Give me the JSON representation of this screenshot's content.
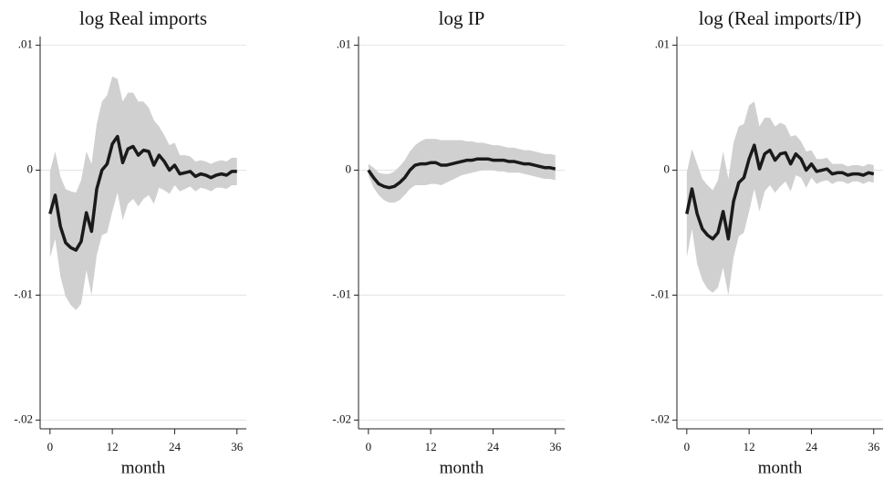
{
  "chart_data": [
    {
      "type": "line",
      "title": "log Real imports",
      "x_label": "month",
      "x": [
        0,
        1,
        2,
        3,
        4,
        5,
        6,
        7,
        8,
        9,
        10,
        11,
        12,
        13,
        14,
        15,
        16,
        17,
        18,
        19,
        20,
        21,
        22,
        23,
        24,
        25,
        26,
        27,
        28,
        29,
        30,
        31,
        32,
        33,
        34,
        35,
        36
      ],
      "xlim": [
        -1.9,
        37.8
      ],
      "xticks": [
        0,
        12,
        24,
        36
      ],
      "ylim": [
        -0.0207,
        0.0107
      ],
      "yticks": [
        {
          "value": 0.01,
          "label": ".01"
        },
        0,
        {
          "value": -0.01,
          "label": "-.01"
        },
        {
          "value": -0.02,
          "label": "-.02"
        }
      ],
      "grid": true,
      "line": {
        "color": "#1a1a1a",
        "values": [
          -0.0035,
          -0.002,
          -0.0045,
          -0.0058,
          -0.0062,
          -0.0064,
          -0.0057,
          -0.0034,
          -0.0049,
          -0.0015,
          0,
          0.0005,
          0.0021,
          0.0027,
          0.0006,
          0.0017,
          0.0019,
          0.0012,
          0.0016,
          0.0015,
          0.0004,
          0.0012,
          0.0007,
          0,
          0.0004,
          -0.0003,
          -0.0002,
          -0.0001,
          -0.0005,
          -0.0003,
          -0.0004,
          -0.0006,
          -0.0004,
          -0.0003,
          -0.0004,
          -0.0001,
          -0.0001
        ]
      },
      "band": {
        "color": "#d0d0d0",
        "upper": [
          -0.0001,
          0.0015,
          -0.0005,
          -0.0015,
          -0.0017,
          -0.0018,
          -0.0008,
          0.0015,
          0.0005,
          0.0037,
          0.0055,
          0.006,
          0.0075,
          0.0073,
          0.0055,
          0.0062,
          0.0062,
          0.0055,
          0.0055,
          0.005,
          0.004,
          0.0035,
          0.0028,
          0.002,
          0.0022,
          0.0012,
          0.0012,
          0.0011,
          0.0007,
          0.0008,
          0.0007,
          0.0005,
          0.0007,
          0.0008,
          0.0007,
          0.001,
          0.001
        ],
        "lower": [
          -0.007,
          -0.0055,
          -0.0085,
          -0.0101,
          -0.0108,
          -0.0112,
          -0.0107,
          -0.008,
          -0.01,
          -0.0068,
          -0.0052,
          -0.005,
          -0.0033,
          -0.0018,
          -0.004,
          -0.0027,
          -0.0023,
          -0.0029,
          -0.0023,
          -0.002,
          -0.0027,
          -0.0014,
          -0.0016,
          -0.0019,
          -0.0012,
          -0.0017,
          -0.0015,
          -0.0013,
          -0.0017,
          -0.0014,
          -0.0015,
          -0.0017,
          -0.0014,
          -0.0014,
          -0.0015,
          -0.0012,
          -0.0012
        ]
      }
    },
    {
      "type": "line",
      "title": "log IP",
      "x_label": "month",
      "x": [
        0,
        1,
        2,
        3,
        4,
        5,
        6,
        7,
        8,
        9,
        10,
        11,
        12,
        13,
        14,
        15,
        16,
        17,
        18,
        19,
        20,
        21,
        22,
        23,
        24,
        25,
        26,
        27,
        28,
        29,
        30,
        31,
        32,
        33,
        34,
        35,
        36
      ],
      "xlim": [
        -1.9,
        37.8
      ],
      "xticks": [
        0,
        12,
        24,
        36
      ],
      "ylim": [
        -0.0207,
        0.0107
      ],
      "yticks": [
        {
          "value": 0.01,
          "label": ".01"
        },
        0,
        {
          "value": -0.01,
          "label": "-.01"
        },
        {
          "value": -0.02,
          "label": "-.02"
        }
      ],
      "grid": true,
      "line": {
        "color": "#1a1a1a",
        "values": [
          0,
          -0.0006,
          -0.0011,
          -0.0013,
          -0.0014,
          -0.0013,
          -0.001,
          -0.0006,
          0,
          0.0004,
          0.0005,
          0.0005,
          0.0006,
          0.0006,
          0.0004,
          0.0004,
          0.0005,
          0.0006,
          0.0007,
          0.0008,
          0.0008,
          0.0009,
          0.0009,
          0.0009,
          0.0008,
          0.0008,
          0.0008,
          0.0007,
          0.0007,
          0.0006,
          0.0005,
          0.0005,
          0.0004,
          0.0003,
          0.0002,
          0.0002,
          0.0001
        ]
      },
      "band": {
        "color": "#d0d0d0",
        "upper": [
          0.0005,
          0.0002,
          -0.0002,
          -0.0003,
          -0.0003,
          -0.0001,
          0.0003,
          0.0008,
          0.0015,
          0.002,
          0.0023,
          0.0025,
          0.0025,
          0.0025,
          0.0024,
          0.0024,
          0.0024,
          0.0024,
          0.0024,
          0.0023,
          0.0023,
          0.0022,
          0.0022,
          0.0021,
          0.002,
          0.002,
          0.0019,
          0.0018,
          0.0018,
          0.0017,
          0.0016,
          0.0016,
          0.0015,
          0.0014,
          0.0013,
          0.0013,
          0.0012
        ],
        "lower": [
          -0.0004,
          -0.0014,
          -0.002,
          -0.0024,
          -0.0026,
          -0.0026,
          -0.0024,
          -0.002,
          -0.0015,
          -0.0012,
          -0.0012,
          -0.0012,
          -0.0011,
          -0.0011,
          -0.0012,
          -0.001,
          -0.0008,
          -0.0006,
          -0.0004,
          -0.0003,
          -0.0002,
          -0.0001,
          0,
          0,
          0,
          -0.0001,
          -0.0001,
          -0.0002,
          -0.0002,
          -0.0002,
          -0.0003,
          -0.0004,
          -0.0005,
          -0.0006,
          -0.0007,
          -0.0007,
          -0.0008
        ]
      }
    },
    {
      "type": "line",
      "title": "log (Real imports/IP)",
      "x_label": "month",
      "x": [
        0,
        1,
        2,
        3,
        4,
        5,
        6,
        7,
        8,
        9,
        10,
        11,
        12,
        13,
        14,
        15,
        16,
        17,
        18,
        19,
        20,
        21,
        22,
        23,
        24,
        25,
        26,
        27,
        28,
        29,
        30,
        31,
        32,
        33,
        34,
        35,
        36
      ],
      "xlim": [
        -1.9,
        37.8
      ],
      "xticks": [
        0,
        12,
        24,
        36
      ],
      "ylim": [
        -0.0207,
        0.0107
      ],
      "yticks": [
        {
          "value": 0.01,
          "label": ".01"
        },
        0,
        {
          "value": -0.01,
          "label": "-.01"
        },
        {
          "value": -0.02,
          "label": "-.02"
        }
      ],
      "grid": true,
      "line": {
        "color": "#1a1a1a",
        "values": [
          -0.0035,
          -0.0015,
          -0.0035,
          -0.0047,
          -0.0052,
          -0.0055,
          -0.005,
          -0.0033,
          -0.0055,
          -0.0025,
          -0.001,
          -0.0006,
          0.0009,
          0.002,
          0.0001,
          0.0013,
          0.0016,
          0.0008,
          0.0013,
          0.0014,
          0.0005,
          0.0013,
          0.0009,
          0,
          0.0005,
          -0.0001,
          0,
          0.0001,
          -0.0003,
          -0.0002,
          -0.0002,
          -0.0004,
          -0.0003,
          -0.0003,
          -0.0004,
          -0.0002,
          -0.0003
        ]
      },
      "band": {
        "color": "#d0d0d0",
        "upper": [
          -0.0002,
          0.0017,
          0.0005,
          -0.0007,
          -0.0012,
          -0.0016,
          -0.0008,
          0.0015,
          -0.0007,
          0.0022,
          0.0035,
          0.0037,
          0.0052,
          0.0055,
          0.0035,
          0.0042,
          0.0042,
          0.0035,
          0.0038,
          0.0036,
          0.0027,
          0.0028,
          0.0023,
          0.0015,
          0.0016,
          0.0009,
          0.0009,
          0.001,
          0.0005,
          0.0005,
          0.0005,
          0.0003,
          0.0004,
          0.0004,
          0.0003,
          0.0005,
          0.0004
        ],
        "lower": [
          -0.007,
          -0.0047,
          -0.0075,
          -0.0088,
          -0.0095,
          -0.0098,
          -0.0094,
          -0.0078,
          -0.01,
          -0.007,
          -0.0053,
          -0.005,
          -0.0033,
          -0.0015,
          -0.0033,
          -0.0017,
          -0.0012,
          -0.0018,
          -0.0013,
          -0.0009,
          -0.0017,
          -0.0004,
          -0.0006,
          -0.0014,
          -0.0006,
          -0.0011,
          -0.0009,
          -0.0008,
          -0.0011,
          -0.0009,
          -0.0009,
          -0.0011,
          -0.0009,
          -0.0009,
          -0.0011,
          -0.0009,
          -0.001
        ]
      }
    }
  ]
}
